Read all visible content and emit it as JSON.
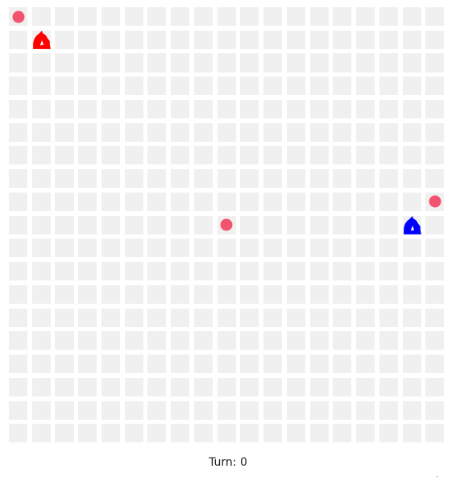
{
  "board": {
    "rows": 19,
    "cols": 19,
    "cell_color": "#f0f0f0",
    "background": "#ffffff"
  },
  "players": [
    {
      "name": "red-player",
      "color": "#ff0000",
      "row": 1,
      "col": 1,
      "icon": "knight-icon"
    },
    {
      "name": "blue-player",
      "color": "#0000ff",
      "row": 9,
      "col": 17,
      "icon": "knight-icon"
    }
  ],
  "dots": [
    {
      "color": "#f25470",
      "row": 0,
      "col": 0
    },
    {
      "color": "#f25470",
      "row": 9,
      "col": 9
    },
    {
      "color": "#f25470",
      "row": 8,
      "col": 18
    }
  ],
  "status": {
    "turn_label": "Turn: ",
    "turn_value": "0"
  },
  "cursor": {
    "icon": "cursor-arrow-icon"
  }
}
